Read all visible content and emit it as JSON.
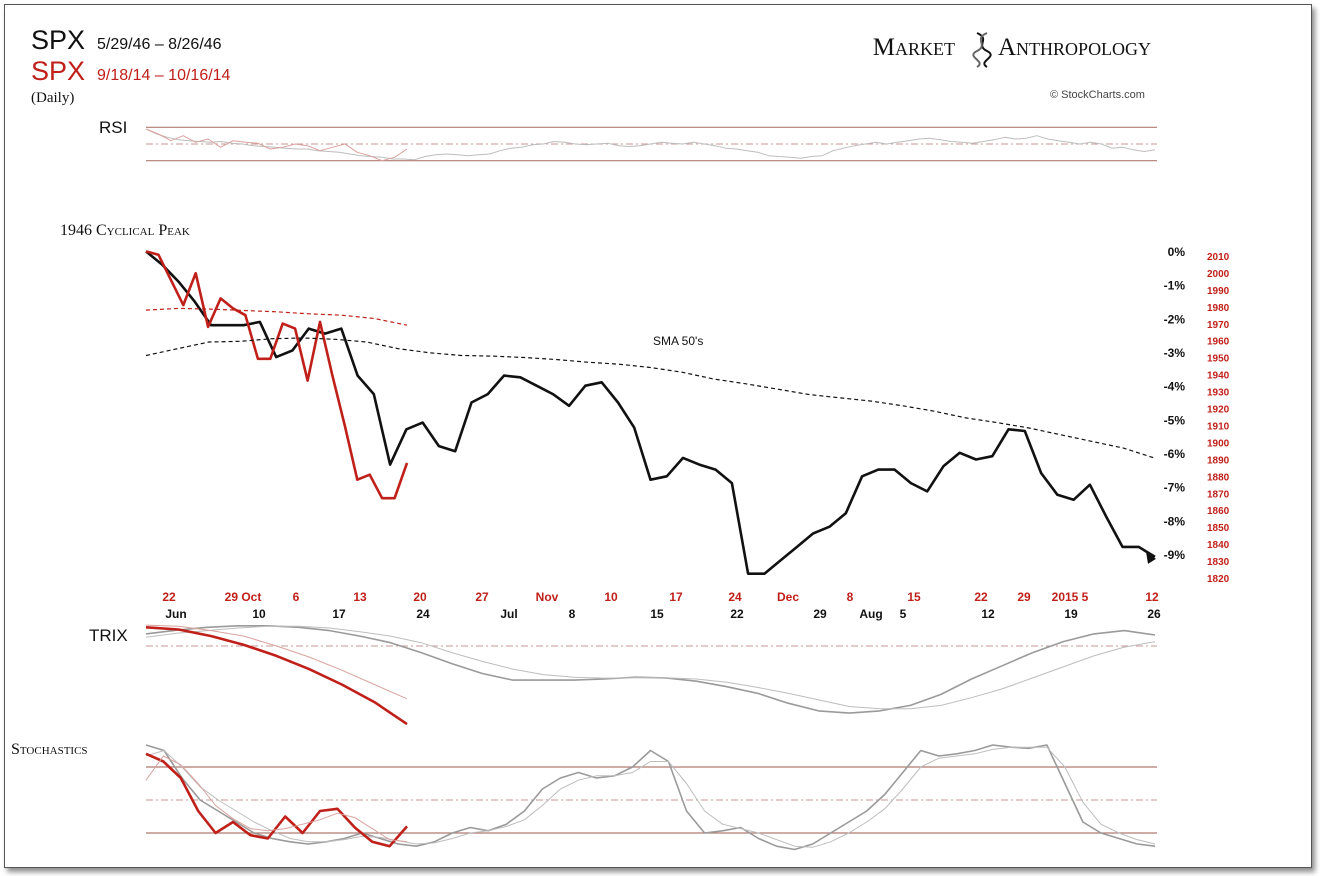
{
  "header": {
    "line1_symbol": "SPX",
    "line1_dates": "5/29/46 – 8/26/46",
    "line2_symbol": "SPX",
    "line2_dates": "9/18/14 – 10/16/14",
    "frequency": "(Daily)"
  },
  "brand": {
    "name_left": "Market",
    "name_right": "Anthropology",
    "icon": "dna-helix-icon",
    "credit": "© StockCharts.com"
  },
  "colors": {
    "red": "#c0201a",
    "black": "#111111",
    "gray": "#9a9a9a",
    "band": "#b07a72"
  },
  "chart_data": [
    {
      "type": "line",
      "title": "RSI",
      "ylim": [
        0,
        100
      ],
      "bands": [
        70,
        50,
        30
      ],
      "series": [
        {
          "name": "RSI 1946",
          "color": "gray",
          "values": [
            68,
            62,
            58,
            55,
            54,
            53,
            52,
            53,
            51,
            50,
            48,
            47,
            46,
            45,
            44,
            44,
            42,
            41,
            40,
            38,
            36,
            35,
            34,
            32,
            32,
            31,
            35,
            37,
            38,
            37,
            36,
            37,
            38,
            42,
            45,
            46,
            49,
            50,
            53,
            52,
            50,
            49,
            50,
            51,
            48,
            47,
            48,
            50,
            52,
            51,
            50,
            52,
            50,
            48,
            45,
            44,
            42,
            40,
            36,
            35,
            34,
            33,
            35,
            36,
            42,
            45,
            48,
            50,
            52,
            50,
            52,
            54,
            56,
            57,
            55,
            53,
            52,
            51,
            53,
            55,
            58,
            56,
            57,
            60,
            56,
            54,
            52,
            50,
            52,
            50,
            45,
            46,
            43,
            41,
            43
          ]
        },
        {
          "name": "RSI 2014",
          "color": "red",
          "values": [
            68,
            62,
            54,
            60,
            52,
            56,
            46,
            54,
            52,
            51,
            44,
            46,
            50,
            48,
            42,
            46,
            50,
            40,
            36,
            30,
            34,
            44
          ]
        }
      ]
    },
    {
      "type": "line",
      "title": "1946 Cyclical Peak",
      "annotation": "SMA 50's",
      "y_left_ticks": [
        "0%",
        "-1%",
        "-2%",
        "-3%",
        "-4%",
        "-5%",
        "-6%",
        "-7%",
        "-8%",
        "-9%"
      ],
      "ylim_pct": [
        -9.4,
        0.1
      ],
      "y_right_ticks": [
        "2010",
        "2000",
        "1990",
        "1980",
        "1970",
        "1960",
        "1950",
        "1940",
        "1930",
        "1920",
        "1910",
        "1900",
        "1890",
        "1880",
        "1870",
        "1860",
        "1850",
        "1840",
        "1830",
        "1820"
      ],
      "x_labels_2014": [
        "22",
        "29 Oct",
        "6",
        "13",
        "20",
        "27",
        "Nov",
        "10",
        "17",
        "24",
        "Dec",
        "8",
        "15",
        "22",
        "29",
        "2015 5",
        "12"
      ],
      "x_labels_1946": [
        "Jun",
        "10",
        "17",
        "24",
        "Jul",
        "8",
        "15",
        "22",
        "29",
        "Aug",
        "5",
        "12",
        "19",
        "26"
      ],
      "series": [
        {
          "name": "SPX 1946",
          "color": "black",
          "values": [
            0,
            -0.4,
            -0.9,
            -1.5,
            -2.2,
            -2.2,
            -2.2,
            -2.1,
            -3.15,
            -2.95,
            -2.3,
            -2.45,
            -2.3,
            -3.7,
            -4.25,
            -6.35,
            -5.3,
            -5.1,
            -5.8,
            -5.95,
            -4.5,
            -4.25,
            -3.7,
            -3.75,
            -4.0,
            -4.25,
            -4.6,
            -4.0,
            -3.9,
            -4.5,
            -5.25,
            -6.8,
            -6.7,
            -6.15,
            -6.35,
            -6.5,
            -6.9,
            -9.6,
            -9.6,
            -9.2,
            -8.8,
            -8.4,
            -8.2,
            -7.8,
            -6.7,
            -6.5,
            -6.5,
            -6.9,
            -7.15,
            -6.4,
            -6.0,
            -6.2,
            -6.1,
            -5.3,
            -5.35,
            -6.6,
            -7.25,
            -7.4,
            -6.95,
            -7.9,
            -8.8,
            -8.8,
            -9.1
          ]
        },
        {
          "name": "SPX 2014",
          "color": "red",
          "values": [
            0,
            -0.1,
            -0.85,
            -1.6,
            -0.65,
            -2.25,
            -1.4,
            -1.7,
            -1.9,
            -3.2,
            -3.2,
            -2.15,
            -2.3,
            -3.85,
            -2.1,
            -3.7,
            -5.2,
            -6.8,
            -6.65,
            -7.35,
            -7.35,
            -6.3
          ]
        },
        {
          "name": "SMA 50 1946",
          "color": "black",
          "dashed": true,
          "values": [
            -3.1,
            -2.9,
            -2.7,
            -2.68,
            -2.6,
            -2.58,
            -2.62,
            -2.7,
            -2.9,
            -3.02,
            -3.1,
            -3.12,
            -3.16,
            -3.22,
            -3.3,
            -3.36,
            -3.46,
            -3.6,
            -3.8,
            -3.94,
            -4.1,
            -4.26,
            -4.36,
            -4.46,
            -4.6,
            -4.76,
            -4.96,
            -5.1,
            -5.26,
            -5.46,
            -5.66,
            -5.86,
            -6.16
          ]
        },
        {
          "name": "SMA 50 2014",
          "color": "red",
          "dashed": true,
          "values": [
            -1.75,
            -1.7,
            -1.72,
            -1.76,
            -1.8,
            -1.86,
            -1.9,
            -2.0,
            -2.2
          ]
        }
      ]
    },
    {
      "type": "line",
      "title": "TRIX",
      "series": [
        {
          "name": "TRIX 1946",
          "color": "gray",
          "values": [
            0.55,
            0.72,
            0.85,
            0.92,
            0.92,
            0.85,
            0.7,
            0.45,
            0.15,
            -0.3,
            -0.8,
            -1.25,
            -1.55,
            -1.55,
            -1.55,
            -1.5,
            -1.42,
            -1.45,
            -1.6,
            -1.85,
            -2.15,
            -2.6,
            -2.95,
            -3.05,
            -2.95,
            -2.7,
            -2.2,
            -1.5,
            -0.9,
            -0.3,
            0.2,
            0.55,
            0.7,
            0.5
          ]
        },
        {
          "name": "TRIX signal 1946",
          "color": "gray",
          "thin": true,
          "values": [
            0.4,
            0.58,
            0.7,
            0.82,
            0.9,
            0.9,
            0.82,
            0.65,
            0.45,
            0.15,
            -0.3,
            -0.7,
            -1.05,
            -1.3,
            -1.42,
            -1.46,
            -1.44,
            -1.44,
            -1.5,
            -1.65,
            -1.88,
            -2.15,
            -2.45,
            -2.75,
            -2.85,
            -2.85,
            -2.7,
            -2.35,
            -1.95,
            -1.45,
            -0.95,
            -0.45,
            -0.05,
            0.2
          ]
        },
        {
          "name": "TRIX 2014",
          "color": "red",
          "values": [
            0.85,
            0.75,
            0.45,
            0.05,
            -0.45,
            -1.05,
            -1.75,
            -2.55,
            -3.55
          ]
        },
        {
          "name": "TRIX signal 2014",
          "color": "red",
          "thin": true,
          "values": [
            0.95,
            0.9,
            0.7,
            0.45,
            0.0,
            -0.5,
            -1.1,
            -1.75,
            -2.4
          ]
        }
      ]
    },
    {
      "type": "line",
      "title": "Stochastics",
      "ylim": [
        0,
        100
      ],
      "bands": [
        80,
        50,
        20
      ],
      "series": [
        {
          "name": "%K 1946",
          "color": "gray",
          "values": [
            100,
            95,
            70,
            50,
            40,
            30,
            20,
            15,
            12,
            10,
            12,
            15,
            20,
            15,
            10,
            8,
            12,
            20,
            25,
            22,
            28,
            40,
            60,
            70,
            75,
            70,
            72,
            80,
            95,
            85,
            40,
            20,
            22,
            25,
            15,
            8,
            5,
            10,
            20,
            30,
            40,
            55,
            75,
            95,
            90,
            92,
            95,
            100,
            98,
            97,
            100,
            65,
            30,
            20,
            15,
            10,
            8
          ]
        },
        {
          "name": "%D 1946",
          "color": "gray",
          "thin": true,
          "values": [
            90,
            95,
            80,
            62,
            50,
            40,
            30,
            22,
            15,
            12,
            12,
            14,
            17,
            16,
            13,
            10,
            11,
            15,
            20,
            22,
            26,
            32,
            45,
            60,
            68,
            72,
            72,
            75,
            85,
            85,
            65,
            40,
            28,
            24,
            20,
            14,
            8,
            7,
            12,
            20,
            30,
            42,
            60,
            80,
            88,
            90,
            92,
            96,
            98,
            98,
            98,
            80,
            48,
            28,
            20,
            14,
            10
          ]
        },
        {
          "name": "%K 2014",
          "color": "red",
          "values": [
            92,
            85,
            70,
            40,
            20,
            30,
            18,
            15,
            35,
            20,
            40,
            42,
            25,
            12,
            8,
            26
          ]
        },
        {
          "name": "%D 2014",
          "color": "red",
          "thin": true,
          "values": [
            68,
            90,
            82,
            65,
            45,
            33,
            24,
            22,
            24,
            28,
            32,
            38,
            34,
            24,
            14,
            12
          ]
        }
      ]
    }
  ]
}
